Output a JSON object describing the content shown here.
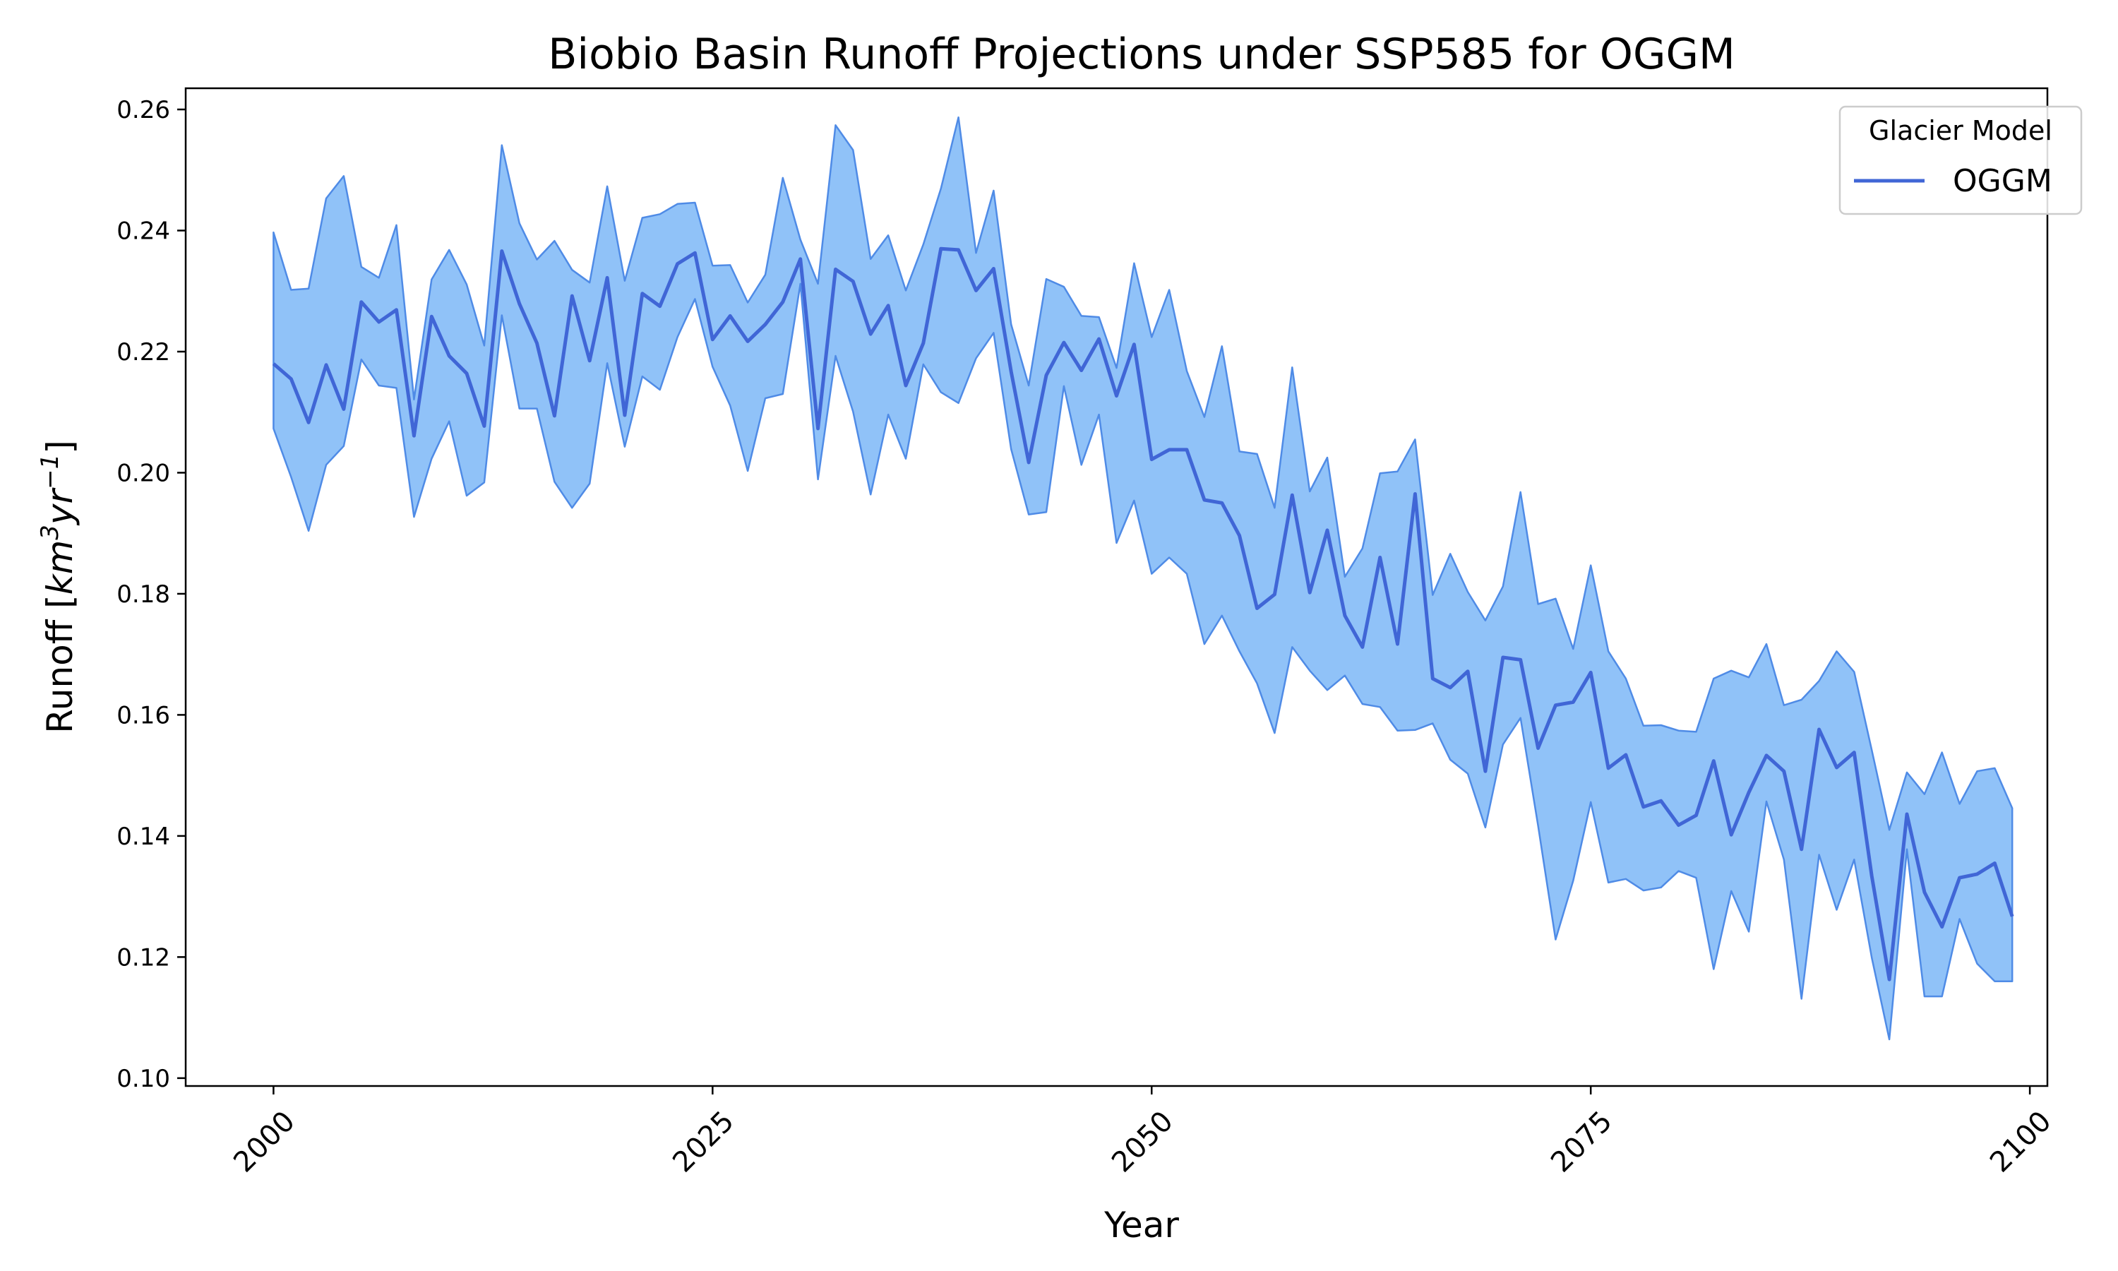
{
  "chart_data": {
    "type": "line",
    "title": "Biobio Basin Runoff Projections under SSP585 for OGGM",
    "xlabel": "Year",
    "ylabel_text": "Runoff [",
    "ylabel_unit_base": "km",
    "ylabel_unit_exp1": "3",
    "ylabel_unit_mid": "yr",
    "ylabel_unit_exp2": "−1",
    "ylabel_close": "]",
    "xlim": [
      1995,
      2101
    ],
    "ylim": [
      0.0987,
      0.2635
    ],
    "xticks": [
      2000,
      2025,
      2050,
      2075,
      2100
    ],
    "xtick_labels": [
      "2000",
      "2025",
      "2050",
      "2075",
      "2100"
    ],
    "yticks": [
      0.1,
      0.12,
      0.14,
      0.16,
      0.18,
      0.2,
      0.22,
      0.24,
      0.26
    ],
    "ytick_labels": [
      "0.10",
      "0.12",
      "0.14",
      "0.16",
      "0.18",
      "0.20",
      "0.22",
      "0.24",
      "0.26"
    ],
    "legend": {
      "title": "Glacier Model",
      "placement": "top-right"
    },
    "colors": {
      "line": "#4066d6",
      "band_fill": "#90c2f8",
      "band_edge": "#4f8be6"
    },
    "x_start": 2000,
    "series": [
      {
        "name": "OGGM",
        "values": [
          0.218,
          0.2155,
          0.2083,
          0.2178,
          0.2105,
          0.2282,
          0.2249,
          0.2269,
          0.2061,
          0.2258,
          0.2193,
          0.2164,
          0.2077,
          0.2366,
          0.2279,
          0.2214,
          0.2094,
          0.2292,
          0.2185,
          0.2322,
          0.2095,
          0.2296,
          0.2275,
          0.2345,
          0.2363,
          0.222,
          0.2259,
          0.2217,
          0.2245,
          0.2282,
          0.2353,
          0.2073,
          0.2336,
          0.2316,
          0.2229,
          0.2276,
          0.2144,
          0.2214,
          0.237,
          0.2368,
          0.2301,
          0.2337,
          0.2167,
          0.2017,
          0.2161,
          0.2215,
          0.2169,
          0.2221,
          0.2127,
          0.2212,
          0.2022,
          0.2038,
          0.2038,
          0.1955,
          0.195,
          0.1896,
          0.1776,
          0.1799,
          0.1963,
          0.1802,
          0.1905,
          0.1764,
          0.1712,
          0.186,
          0.1717,
          0.1965,
          0.166,
          0.1645,
          0.1672,
          0.1507,
          0.1695,
          0.1691,
          0.1545,
          0.1616,
          0.1621,
          0.167,
          0.1512,
          0.1534,
          0.1448,
          0.1458,
          0.1418,
          0.1434,
          0.1524,
          0.1402,
          0.1472,
          0.1533,
          0.1507,
          0.1378,
          0.1576,
          0.1513,
          0.1538,
          0.1334,
          0.1163,
          0.1436,
          0.1307,
          0.125,
          0.1331,
          0.1337,
          0.1355,
          0.1267
        ],
        "lower": [
          0.2073,
          0.1993,
          0.1904,
          0.2013,
          0.2044,
          0.2187,
          0.2144,
          0.214,
          0.1927,
          0.2023,
          0.2085,
          0.1962,
          0.1984,
          0.226,
          0.2106,
          0.2106,
          0.1985,
          0.1942,
          0.1982,
          0.2181,
          0.2043,
          0.2159,
          0.2137,
          0.2224,
          0.2287,
          0.2175,
          0.2111,
          0.2003,
          0.2123,
          0.213,
          0.2312,
          0.1989,
          0.2193,
          0.2101,
          0.1964,
          0.2096,
          0.2023,
          0.2179,
          0.2133,
          0.2115,
          0.2189,
          0.2231,
          0.2039,
          0.1931,
          0.1935,
          0.2143,
          0.2013,
          0.2096,
          0.1884,
          0.1954,
          0.1833,
          0.186,
          0.1833,
          0.1717,
          0.1764,
          0.1705,
          0.1652,
          0.157,
          0.1712,
          0.1673,
          0.1641,
          0.1665,
          0.1618,
          0.1613,
          0.1574,
          0.1575,
          0.1586,
          0.1526,
          0.1503,
          0.1414,
          0.1551,
          0.1595,
          0.1417,
          0.1229,
          0.1326,
          0.1456,
          0.1323,
          0.1329,
          0.131,
          0.1315,
          0.1342,
          0.1331,
          0.118,
          0.1309,
          0.1242,
          0.1457,
          0.1361,
          0.1131,
          0.1369,
          0.1278,
          0.1361,
          0.1199,
          0.1064,
          0.1378,
          0.1135,
          0.1135,
          0.1263,
          0.1189,
          0.116,
          0.116
        ],
        "upper": [
          0.2397,
          0.2302,
          0.2304,
          0.2453,
          0.249,
          0.234,
          0.2322,
          0.2409,
          0.2121,
          0.2319,
          0.2368,
          0.2311,
          0.221,
          0.2541,
          0.2412,
          0.2352,
          0.2383,
          0.2335,
          0.2314,
          0.2473,
          0.2317,
          0.2421,
          0.2427,
          0.2444,
          0.2446,
          0.2342,
          0.2343,
          0.2281,
          0.2327,
          0.2487,
          0.2385,
          0.2312,
          0.2574,
          0.2533,
          0.2353,
          0.2392,
          0.2301,
          0.2377,
          0.2469,
          0.2587,
          0.2363,
          0.2466,
          0.2245,
          0.2144,
          0.232,
          0.2307,
          0.2259,
          0.2257,
          0.2173,
          0.2346,
          0.2224,
          0.2302,
          0.2168,
          0.2092,
          0.2209,
          0.2035,
          0.2031,
          0.1942,
          0.2174,
          0.1969,
          0.2025,
          0.1828,
          0.1875,
          0.1999,
          0.2002,
          0.2055,
          0.1798,
          0.1866,
          0.1803,
          0.1756,
          0.1812,
          0.1968,
          0.1783,
          0.1792,
          0.1709,
          0.1847,
          0.1705,
          0.166,
          0.1582,
          0.1583,
          0.1574,
          0.1572,
          0.166,
          0.1673,
          0.1662,
          0.1717,
          0.1616,
          0.1625,
          0.1656,
          0.1705,
          0.1671,
          0.1542,
          0.141,
          0.1505,
          0.1469,
          0.1538,
          0.1453,
          0.1507,
          0.1512,
          0.1446
        ]
      }
    ]
  }
}
